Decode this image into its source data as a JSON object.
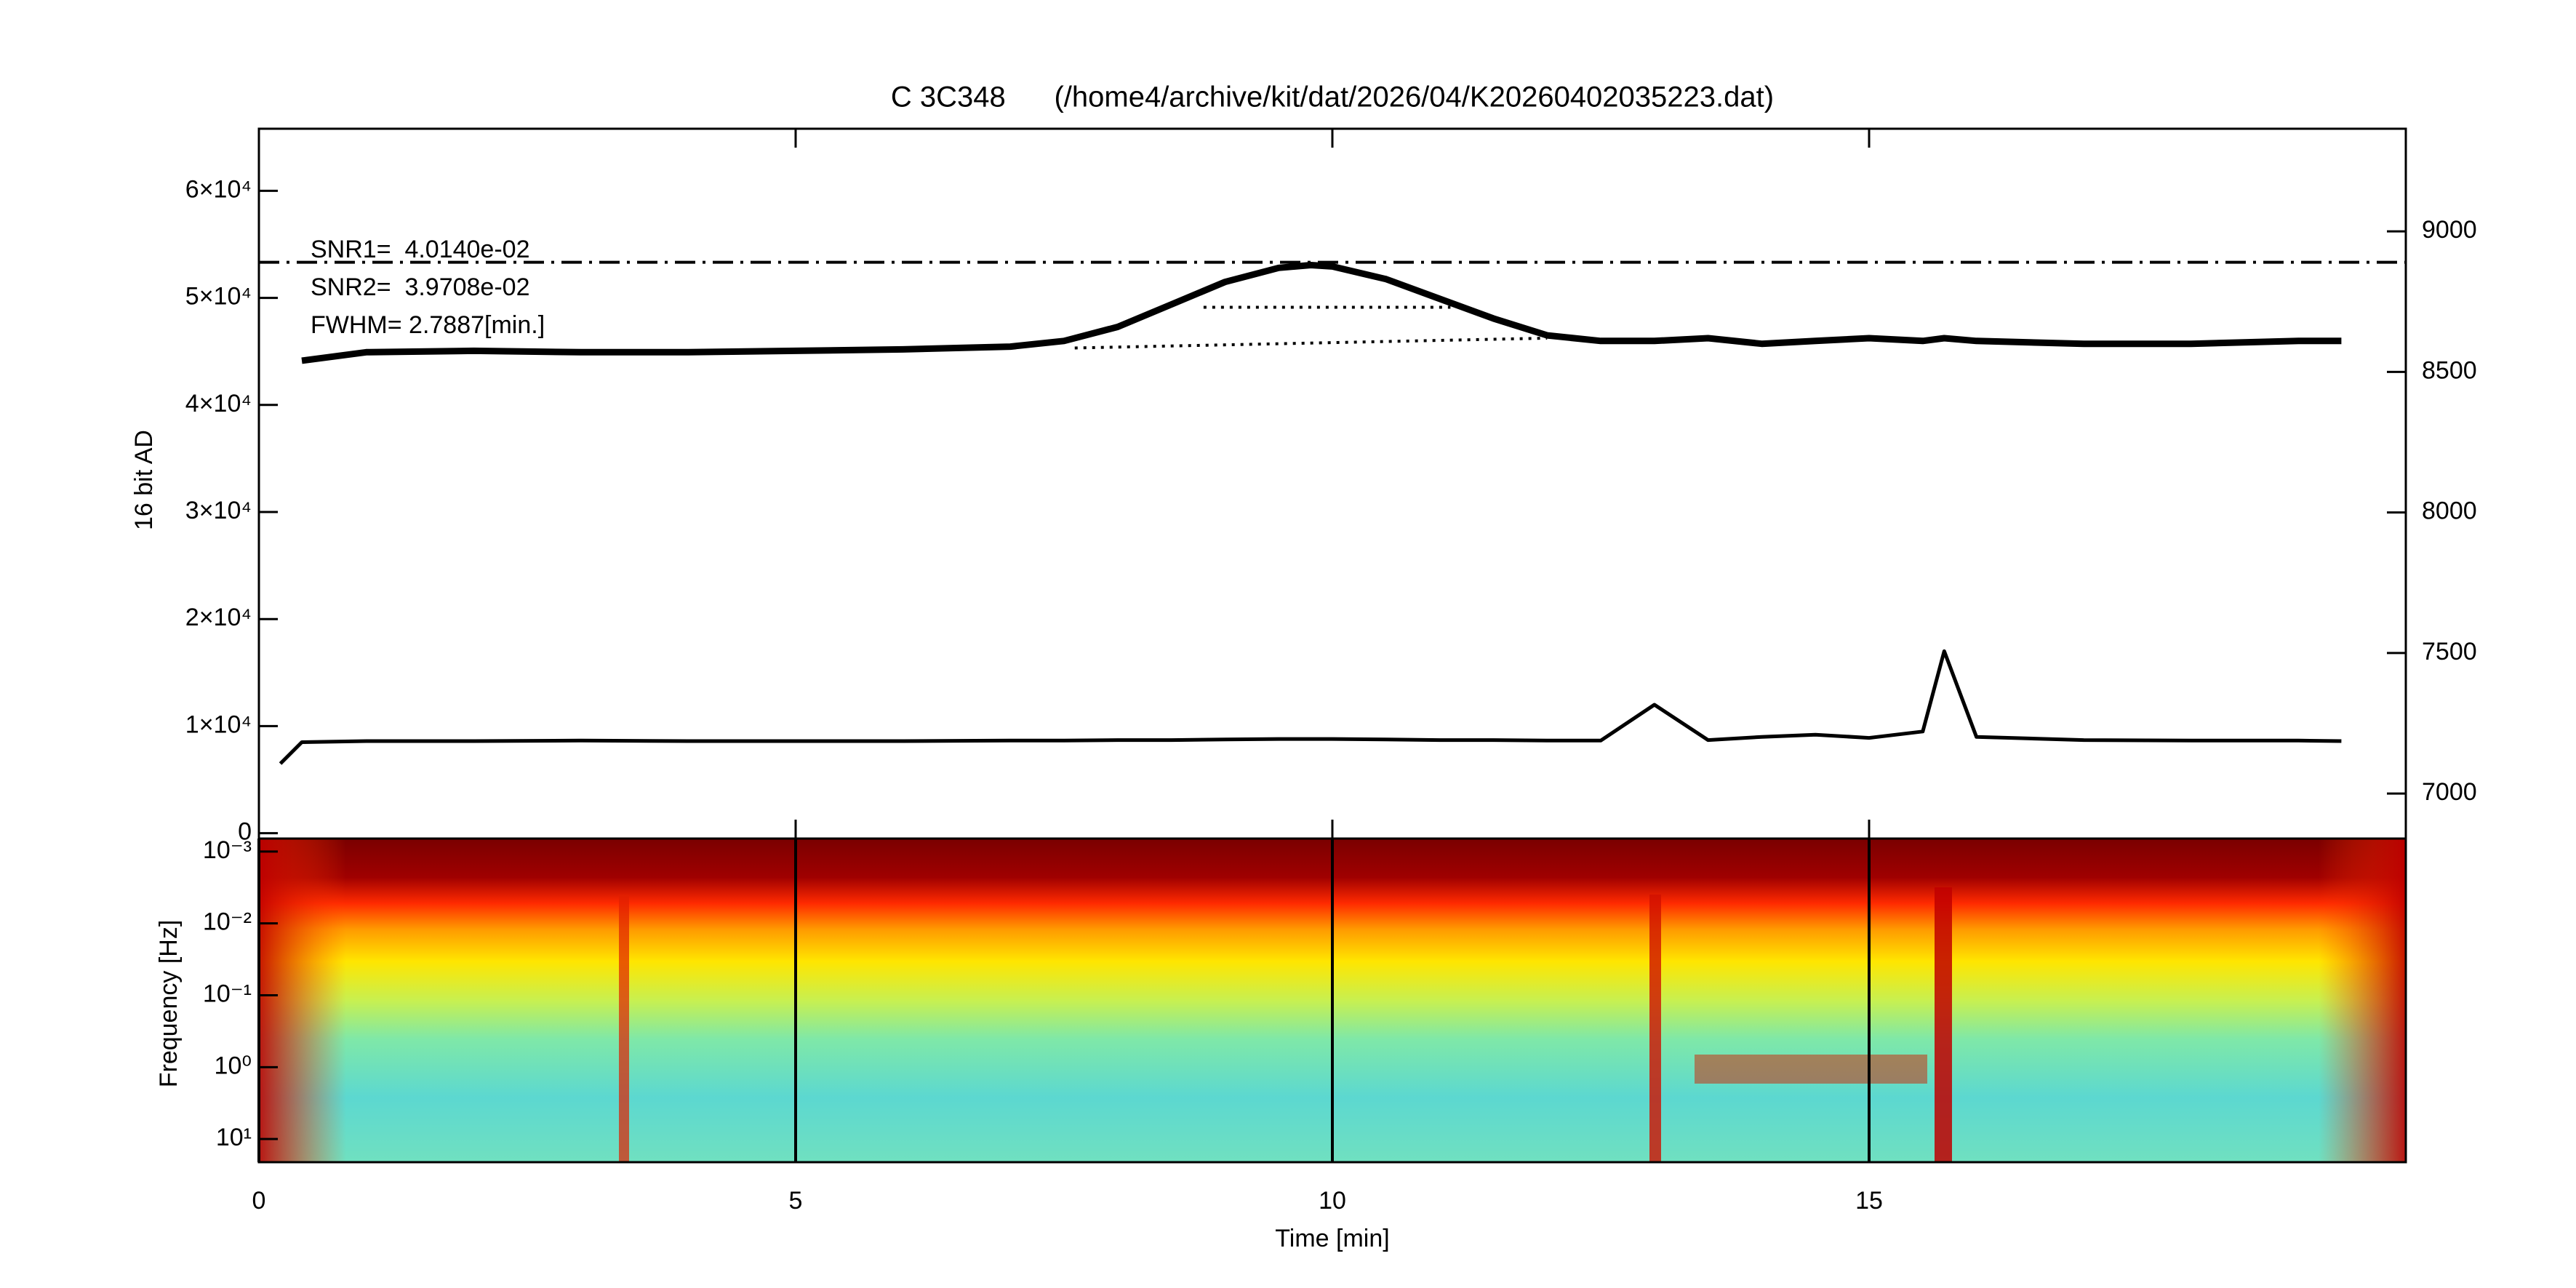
{
  "chart_data": [
    {
      "type": "line",
      "title": "C 3C348      (/home4/archive/kit/dat/2026/04/K20260402035223.dat)",
      "ylabel": "16 bit AD",
      "annotations": [
        "SNR1=  4.0140e-02",
        "SNR2=  3.9708e-02",
        "FWHM= 2.7887[min.]"
      ],
      "xlim": [
        0,
        20
      ],
      "ylim": [
        -500,
        65800
      ],
      "yticks": [
        0,
        {
          "value": 10000,
          "label": "1×10⁴"
        },
        {
          "value": 20000,
          "label": "2×10⁴"
        },
        {
          "value": 30000,
          "label": "3×10⁴"
        },
        {
          "value": 40000,
          "label": "4×10⁴"
        },
        {
          "value": 50000,
          "label": "5×10⁴"
        },
        {
          "value": 60000,
          "label": "6×10⁴"
        }
      ],
      "y2lim": [
        6840,
        9365
      ],
      "y2ticks": [
        7000,
        7500,
        8000,
        8500,
        9000
      ],
      "reference_line": {
        "value": 8890,
        "axis": "y2"
      },
      "baseline": {
        "x": [
          7.6,
          12
        ],
        "values": [
          8585,
          8620
        ],
        "axis": "y2"
      },
      "fwhm_line": {
        "x": [
          8.8,
          11.1
        ],
        "values": [
          8730,
          8730
        ],
        "axis": "y2"
      },
      "x": [
        0.2,
        0.4,
        1,
        2,
        3,
        4,
        5,
        6,
        7,
        7.5,
        8,
        8.5,
        9,
        9.5,
        9.8,
        10,
        10.5,
        11,
        11.5,
        12,
        12.5,
        13,
        13.5,
        14,
        14.5,
        15,
        15.5,
        15.7,
        16,
        17,
        18,
        19,
        19.4
      ],
      "series": [
        {
          "color": "#000000",
          "axis": "y2",
          "values": [
            null,
            8540,
            8570,
            8575,
            8570,
            8570,
            8575,
            8580,
            8590,
            8610,
            8660,
            8740,
            8820,
            8870,
            8880,
            8875,
            8830,
            8760,
            8690,
            8630,
            8610,
            8610,
            8620,
            8600,
            8610,
            8620,
            8610,
            8620,
            8610,
            8600,
            8600,
            8610,
            8610
          ]
        },
        {
          "color": "#000000",
          "values": [
            6500,
            8500,
            8600,
            8600,
            8650,
            8600,
            8600,
            8600,
            8650,
            8650,
            8700,
            8700,
            8750,
            8800,
            8800,
            8800,
            8750,
            8700,
            8700,
            8650,
            8650,
            12000,
            8700,
            9000,
            9200,
            8900,
            9500,
            17000,
            9000,
            8700,
            8650,
            8650,
            8600
          ]
        }
      ]
    },
    {
      "type": "heatmap",
      "ylabel": "Frequency [Hz]",
      "xlabel": "Time [min]",
      "xlim": [
        0,
        20
      ],
      "xticks": [
        0,
        5,
        10,
        15
      ],
      "grid": true,
      "ylog": true,
      "ylim": [
        0.00066,
        21
      ],
      "yticks": [
        {
          "value": 0.001,
          "label": "10⁻³"
        },
        {
          "value": 0.01,
          "label": "10⁻²"
        },
        {
          "value": 0.1,
          "label": "10⁻¹"
        },
        {
          "value": 1,
          "label": "10⁰"
        },
        {
          "value": 10,
          "label": "10¹"
        }
      ]
    }
  ]
}
